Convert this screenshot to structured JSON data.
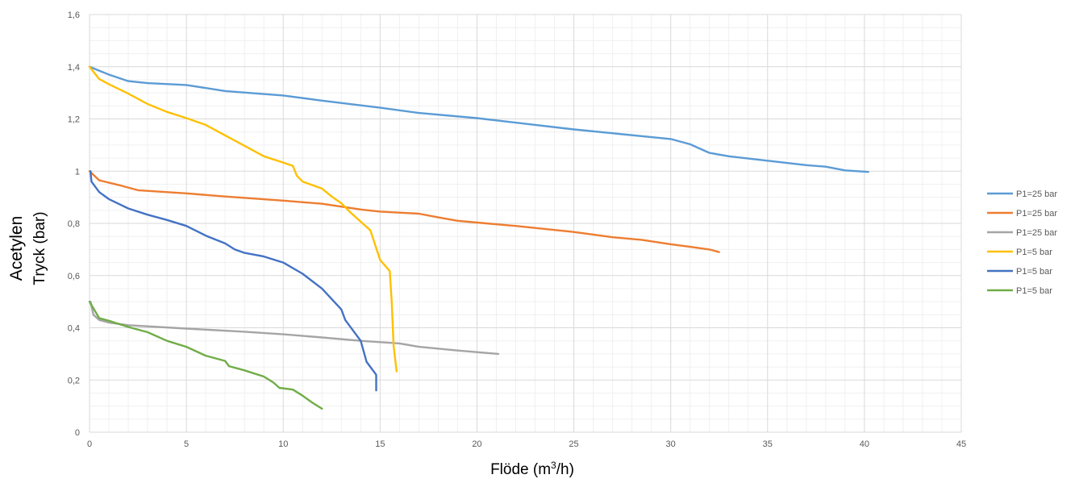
{
  "chart_data": {
    "type": "line",
    "title": "",
    "xlabel": "Flöde (m³/h)",
    "xlabel_main": "Flöde (m",
    "xlabel_sup": "3",
    "xlabel_tail": "/h)",
    "ylabel_line1": "Acetylen",
    "ylabel_line2": "Tryck (bar)",
    "xlim": [
      0,
      45
    ],
    "ylim": [
      0,
      1.6
    ],
    "x_ticks": [
      0,
      5,
      10,
      15,
      20,
      25,
      30,
      35,
      40,
      45
    ],
    "y_ticks": [
      0,
      0.2,
      0.4,
      0.6,
      0.8,
      1,
      1.2,
      1.4,
      1.6
    ],
    "y_tick_labels": [
      "0",
      "0,2",
      "0,4",
      "0,6",
      "0,8",
      "1",
      "1,2",
      "1,4",
      "1,6"
    ],
    "grid": true,
    "legend_position": "right",
    "series": [
      {
        "name": "P1=25 bar",
        "color": "#5b9bd5",
        "points": [
          [
            0,
            1.4
          ],
          [
            1,
            1.37
          ],
          [
            2,
            1.345
          ],
          [
            3,
            1.337
          ],
          [
            5,
            1.33
          ],
          [
            7,
            1.307
          ],
          [
            10,
            1.29
          ],
          [
            12,
            1.27
          ],
          [
            15,
            1.243
          ],
          [
            17,
            1.223
          ],
          [
            20,
            1.203
          ],
          [
            25,
            1.16
          ],
          [
            30,
            1.123
          ],
          [
            31,
            1.103
          ],
          [
            32,
            1.07
          ],
          [
            33,
            1.057
          ],
          [
            35,
            1.04
          ],
          [
            37,
            1.023
          ],
          [
            38,
            1.017
          ],
          [
            39,
            1.003
          ],
          [
            40.2,
            0.997
          ]
        ]
      },
      {
        "name": "P1=25 bar",
        "color": "#ed7d31",
        "points": [
          [
            0,
            1.0
          ],
          [
            0.5,
            0.965
          ],
          [
            1.5,
            0.947
          ],
          [
            2.5,
            0.927
          ],
          [
            5,
            0.915
          ],
          [
            7,
            0.903
          ],
          [
            10,
            0.887
          ],
          [
            12,
            0.875
          ],
          [
            14,
            0.853
          ],
          [
            15,
            0.845
          ],
          [
            17,
            0.837
          ],
          [
            18,
            0.823
          ],
          [
            19,
            0.81
          ],
          [
            20,
            0.803
          ],
          [
            22,
            0.79
          ],
          [
            25,
            0.767
          ],
          [
            27,
            0.747
          ],
          [
            28.5,
            0.737
          ],
          [
            30,
            0.72
          ],
          [
            31,
            0.71
          ],
          [
            32,
            0.7
          ],
          [
            32.5,
            0.69
          ]
        ]
      },
      {
        "name": "P1=25 bar",
        "color": "#a5a5a5",
        "points": [
          [
            0.05,
            0.5
          ],
          [
            0.2,
            0.45
          ],
          [
            0.5,
            0.43
          ],
          [
            1,
            0.42
          ],
          [
            2,
            0.41
          ],
          [
            5,
            0.397
          ],
          [
            8,
            0.385
          ],
          [
            10,
            0.375
          ],
          [
            12,
            0.363
          ],
          [
            14,
            0.35
          ],
          [
            16,
            0.34
          ],
          [
            17,
            0.327
          ],
          [
            19,
            0.313
          ],
          [
            21.1,
            0.3
          ]
        ]
      },
      {
        "name": "P1=5 bar",
        "color": "#ffc000",
        "points": [
          [
            0,
            1.4
          ],
          [
            0.5,
            1.353
          ],
          [
            1,
            1.333
          ],
          [
            2,
            1.297
          ],
          [
            3,
            1.257
          ],
          [
            4,
            1.227
          ],
          [
            5,
            1.203
          ],
          [
            6,
            1.177
          ],
          [
            7,
            1.137
          ],
          [
            8,
            1.097
          ],
          [
            9,
            1.057
          ],
          [
            10,
            1.033
          ],
          [
            10.5,
            1.02
          ],
          [
            10.7,
            0.983
          ],
          [
            11,
            0.96
          ],
          [
            12,
            0.933
          ],
          [
            12.5,
            0.903
          ],
          [
            13,
            0.877
          ],
          [
            13.5,
            0.84
          ],
          [
            14.5,
            0.773
          ],
          [
            15,
            0.66
          ],
          [
            15.5,
            0.617
          ],
          [
            15.6,
            0.5
          ],
          [
            15.7,
            0.33
          ],
          [
            15.85,
            0.233
          ]
        ]
      },
      {
        "name": "P1=5 bar",
        "color": "#4472c4",
        "points": [
          [
            0.05,
            1.0
          ],
          [
            0.1,
            0.96
          ],
          [
            0.5,
            0.92
          ],
          [
            1,
            0.893
          ],
          [
            2,
            0.857
          ],
          [
            3,
            0.833
          ],
          [
            4,
            0.813
          ],
          [
            5,
            0.79
          ],
          [
            6,
            0.753
          ],
          [
            7,
            0.723
          ],
          [
            7.5,
            0.7
          ],
          [
            8,
            0.687
          ],
          [
            9,
            0.673
          ],
          [
            10,
            0.65
          ],
          [
            11,
            0.607
          ],
          [
            12,
            0.55
          ],
          [
            13,
            0.47
          ],
          [
            13.2,
            0.43
          ],
          [
            14,
            0.35
          ],
          [
            14.3,
            0.27
          ],
          [
            14.8,
            0.22
          ],
          [
            14.8,
            0.16
          ]
        ]
      },
      {
        "name": "P1=5 bar",
        "color": "#70ad47",
        "points": [
          [
            0,
            0.5
          ],
          [
            0.5,
            0.437
          ],
          [
            1,
            0.427
          ],
          [
            2,
            0.403
          ],
          [
            3,
            0.383
          ],
          [
            4,
            0.35
          ],
          [
            5,
            0.327
          ],
          [
            6,
            0.293
          ],
          [
            7,
            0.273
          ],
          [
            7.2,
            0.253
          ],
          [
            8,
            0.237
          ],
          [
            9,
            0.213
          ],
          [
            9.5,
            0.19
          ],
          [
            9.8,
            0.17
          ],
          [
            10.5,
            0.163
          ],
          [
            11,
            0.14
          ],
          [
            11.5,
            0.113
          ],
          [
            12,
            0.09
          ]
        ]
      }
    ]
  }
}
